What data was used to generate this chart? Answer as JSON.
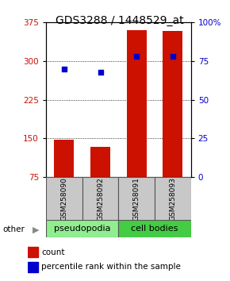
{
  "title": "GDS3288 / 1448529_at",
  "samples": [
    "GSM258090",
    "GSM258092",
    "GSM258091",
    "GSM258093"
  ],
  "bar_values": [
    147,
    133,
    360,
    358
  ],
  "percentile_pct": [
    70,
    68,
    78,
    78
  ],
  "ylim_left": [
    75,
    375
  ],
  "ylim_right": [
    0,
    100
  ],
  "yticks_left": [
    75,
    150,
    225,
    300,
    375
  ],
  "yticks_right": [
    0,
    25,
    50,
    75,
    100
  ],
  "bar_color": "#cc1100",
  "dot_color": "#0000cc",
  "bar_bottom": 75,
  "grid_lines": [
    150,
    225,
    300
  ],
  "groups": [
    {
      "label": "pseudopodia",
      "indices": [
        0,
        1
      ],
      "color": "#90ee90"
    },
    {
      "label": "cell bodies",
      "indices": [
        2,
        3
      ],
      "color": "#44cc44"
    }
  ],
  "other_label": "other",
  "legend_count_color": "#cc1100",
  "legend_dot_color": "#0000cc",
  "title_fontsize": 10,
  "tick_fontsize": 7.5,
  "sample_label_fontsize": 6.5,
  "group_label_fontsize": 8
}
